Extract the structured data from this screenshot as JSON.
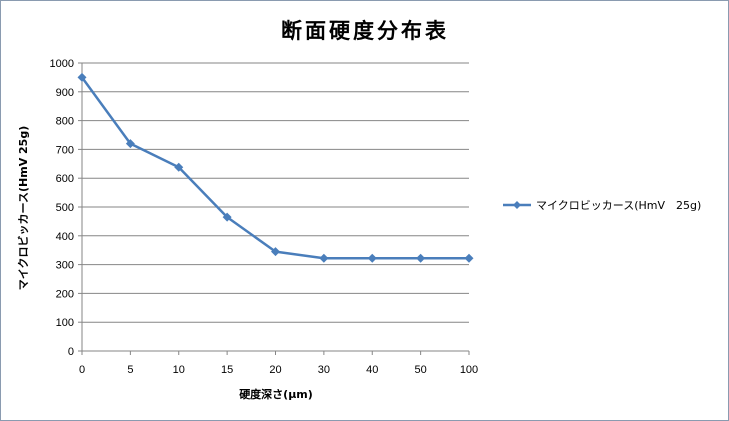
{
  "chart_data": {
    "type": "line",
    "title": "断面硬度分布表",
    "xlabel": "硬度深さ(μm)",
    "ylabel": "マイクロビッカース(HmV 25g)",
    "categories": [
      "0",
      "5",
      "10",
      "15",
      "20",
      "30",
      "40",
      "50",
      "100"
    ],
    "series": [
      {
        "name": "マイクロビッカース(HmV　25g)",
        "values": [
          950,
          720,
          638,
          465,
          345,
          322,
          322,
          322,
          322
        ]
      }
    ],
    "ylim": [
      0,
      1000
    ],
    "yticks": [
      "0",
      "100",
      "200",
      "300",
      "400",
      "500",
      "600",
      "700",
      "800",
      "900",
      "1000"
    ],
    "grid": true,
    "legend_position": "right",
    "colors": {
      "series": "#4a7ebb",
      "grid": "#868686",
      "axis": "#868686"
    }
  }
}
